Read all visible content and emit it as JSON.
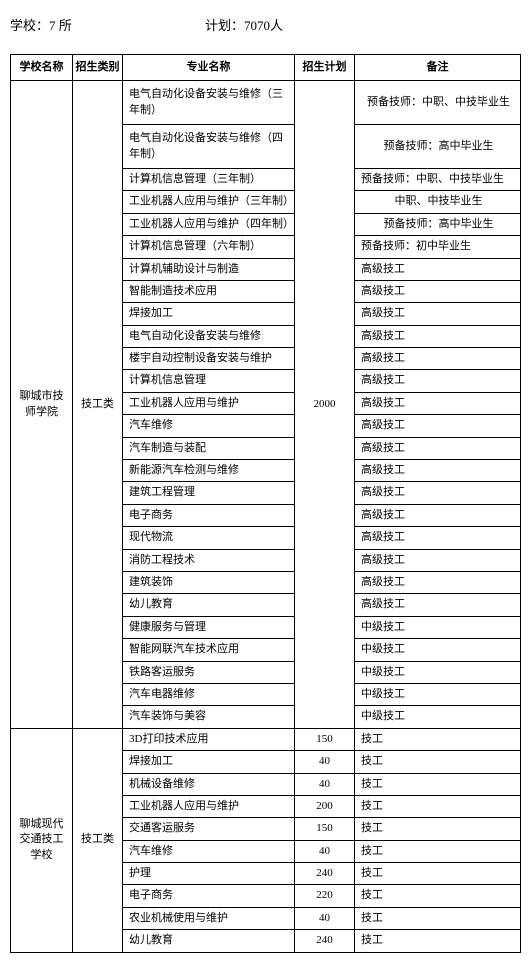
{
  "header": {
    "schools_label": "学校：7 所",
    "plan_label": "计划：7070人"
  },
  "columns": {
    "school": "学校名称",
    "type": "招生类别",
    "major": "专业名称",
    "plan": "招生计划",
    "note": "备注"
  },
  "school1": {
    "name": "聊城市技师学院",
    "type": "技工类",
    "plan": "2000",
    "rows": [
      {
        "major": "电气自动化设备安装与维修（三年制）",
        "note": "预备技师：中职、中技毕业生",
        "tall": true,
        "noteCenter": true
      },
      {
        "major": "电气自动化设备安装与维修（四年制）",
        "note": "预备技师：高中毕业生",
        "tall": true,
        "noteCenter": true
      },
      {
        "major": "计算机信息管理（三年制）",
        "note": "预备技师：中职、中技毕业生"
      },
      {
        "major": "工业机器人应用与维护（三年制）",
        "note": "中职、中技毕业生",
        "noteCenter": true
      },
      {
        "major": "工业机器人应用与维护（四年制）",
        "note": "预备技师：高中毕业生",
        "noteCenter": true
      },
      {
        "major": "计算机信息管理（六年制）",
        "note": "预备技师：初中毕业生"
      },
      {
        "major": "计算机辅助设计与制造",
        "note": "高级技工"
      },
      {
        "major": "智能制造技术应用",
        "note": "高级技工"
      },
      {
        "major": "焊接加工",
        "note": "高级技工"
      },
      {
        "major": "电气自动化设备安装与维修",
        "note": "高级技工"
      },
      {
        "major": "楼宇自动控制设备安装与维护",
        "note": "高级技工"
      },
      {
        "major": "计算机信息管理",
        "note": "高级技工"
      },
      {
        "major": "工业机器人应用与维护",
        "note": "高级技工"
      },
      {
        "major": "汽车维修",
        "note": "高级技工"
      },
      {
        "major": "汽车制造与装配",
        "note": "高级技工"
      },
      {
        "major": "新能源汽车检测与维修",
        "note": "高级技工"
      },
      {
        "major": "建筑工程管理",
        "note": "高级技工"
      },
      {
        "major": "电子商务",
        "note": "高级技工"
      },
      {
        "major": "现代物流",
        "note": "高级技工"
      },
      {
        "major": "消防工程技术",
        "note": "高级技工"
      },
      {
        "major": "建筑装饰",
        "note": "高级技工"
      },
      {
        "major": "幼儿教育",
        "note": "高级技工"
      },
      {
        "major": "健康服务与管理",
        "note": "中级技工"
      },
      {
        "major": "智能网联汽车技术应用",
        "note": "中级技工"
      },
      {
        "major": "铁路客运服务",
        "note": "中级技工"
      },
      {
        "major": "汽车电器维修",
        "note": "中级技工"
      },
      {
        "major": "汽车装饰与美容",
        "note": "中级技工"
      }
    ]
  },
  "school2": {
    "name": "聊城现代交通技工学校",
    "type": "技工类",
    "rows": [
      {
        "major": "3D打印技术应用",
        "plan": "150",
        "note": "技工"
      },
      {
        "major": "焊接加工",
        "plan": "40",
        "note": "技工"
      },
      {
        "major": "机械设备维修",
        "plan": "40",
        "note": "技工"
      },
      {
        "major": "工业机器人应用与维护",
        "plan": "200",
        "note": "技工"
      },
      {
        "major": "交通客运服务",
        "plan": "150",
        "note": "技工"
      },
      {
        "major": "汽车维修",
        "plan": "40",
        "note": "技工"
      },
      {
        "major": "护理",
        "plan": "240",
        "note": "技工"
      },
      {
        "major": "电子商务",
        "plan": "220",
        "note": "技工"
      },
      {
        "major": "农业机械使用与维护",
        "plan": "40",
        "note": "技工"
      },
      {
        "major": "幼儿教育",
        "plan": "240",
        "note": "技工"
      }
    ]
  }
}
